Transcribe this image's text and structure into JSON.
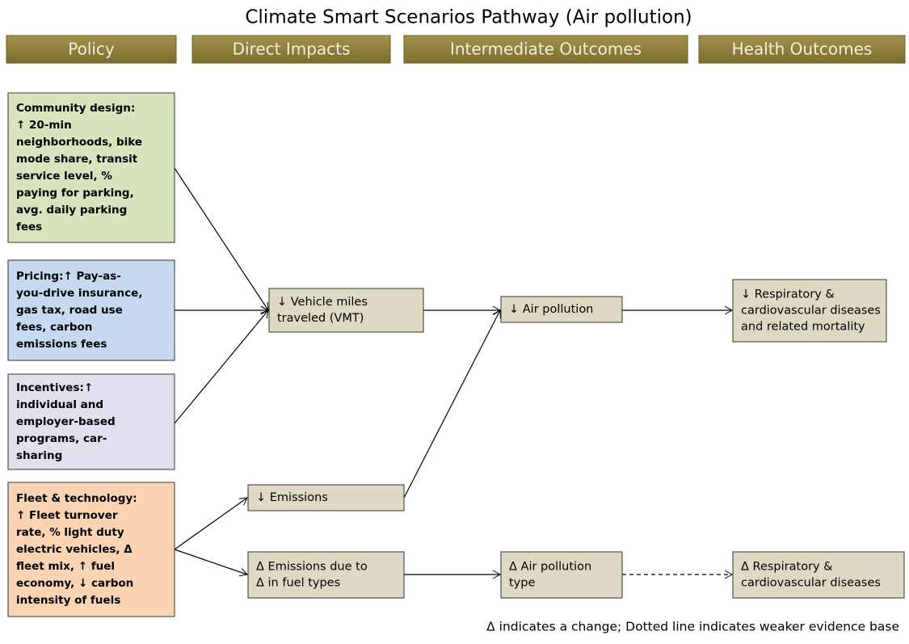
{
  "title": "Climate Smart Scenarios Pathway (Air pollution)",
  "headers": [
    "Policy",
    "Direct Impacts",
    "Intermediate Outcomes",
    "Health Outcomes"
  ],
  "nodes": [
    {
      "lines": [
        "Community design:",
        "↑ 20-min",
        "neighborhoods, bike",
        "mode share, transit",
        "service level, %",
        "paying for parking,",
        "avg. daily parking",
        "fees"
      ]
    },
    {
      "lines": [
        "Pricing:↑ Pay-as-",
        "you-drive insurance,",
        "gas tax, road use",
        "fees, carbon",
        "emissions fees"
      ]
    },
    {
      "lines": [
        "Incentives:↑",
        "individual and",
        "employer-based",
        "programs, car-",
        "sharing"
      ]
    },
    {
      "lines": [
        "Fleet & technology:",
        "↑ Fleet turnover",
        "rate, % light duty",
        "electric vehicles, Δ",
        "fleet mix, ↑ fuel",
        "economy, ↓ carbon",
        "intensity of fuels"
      ]
    },
    {
      "lines": [
        "↓ Vehicle miles",
        "traveled (VMT)"
      ]
    },
    {
      "lines": [
        "↓ Air pollution"
      ]
    },
    {
      "lines": [
        "↓ Respiratory &",
        "cardiovascular diseases",
        "and related mortality"
      ]
    },
    {
      "lines": [
        "↓ Emissions"
      ]
    },
    {
      "lines": [
        "Δ Emissions due to",
        "Δ in fuel types"
      ]
    },
    {
      "lines": [
        "Δ Air pollution",
        "type"
      ]
    },
    {
      "lines": [
        "Δ Respiratory &",
        "cardiovascular diseases"
      ]
    }
  ],
  "note": "Δ  indicates a change; Dotted line indicates weaker evidence base"
}
